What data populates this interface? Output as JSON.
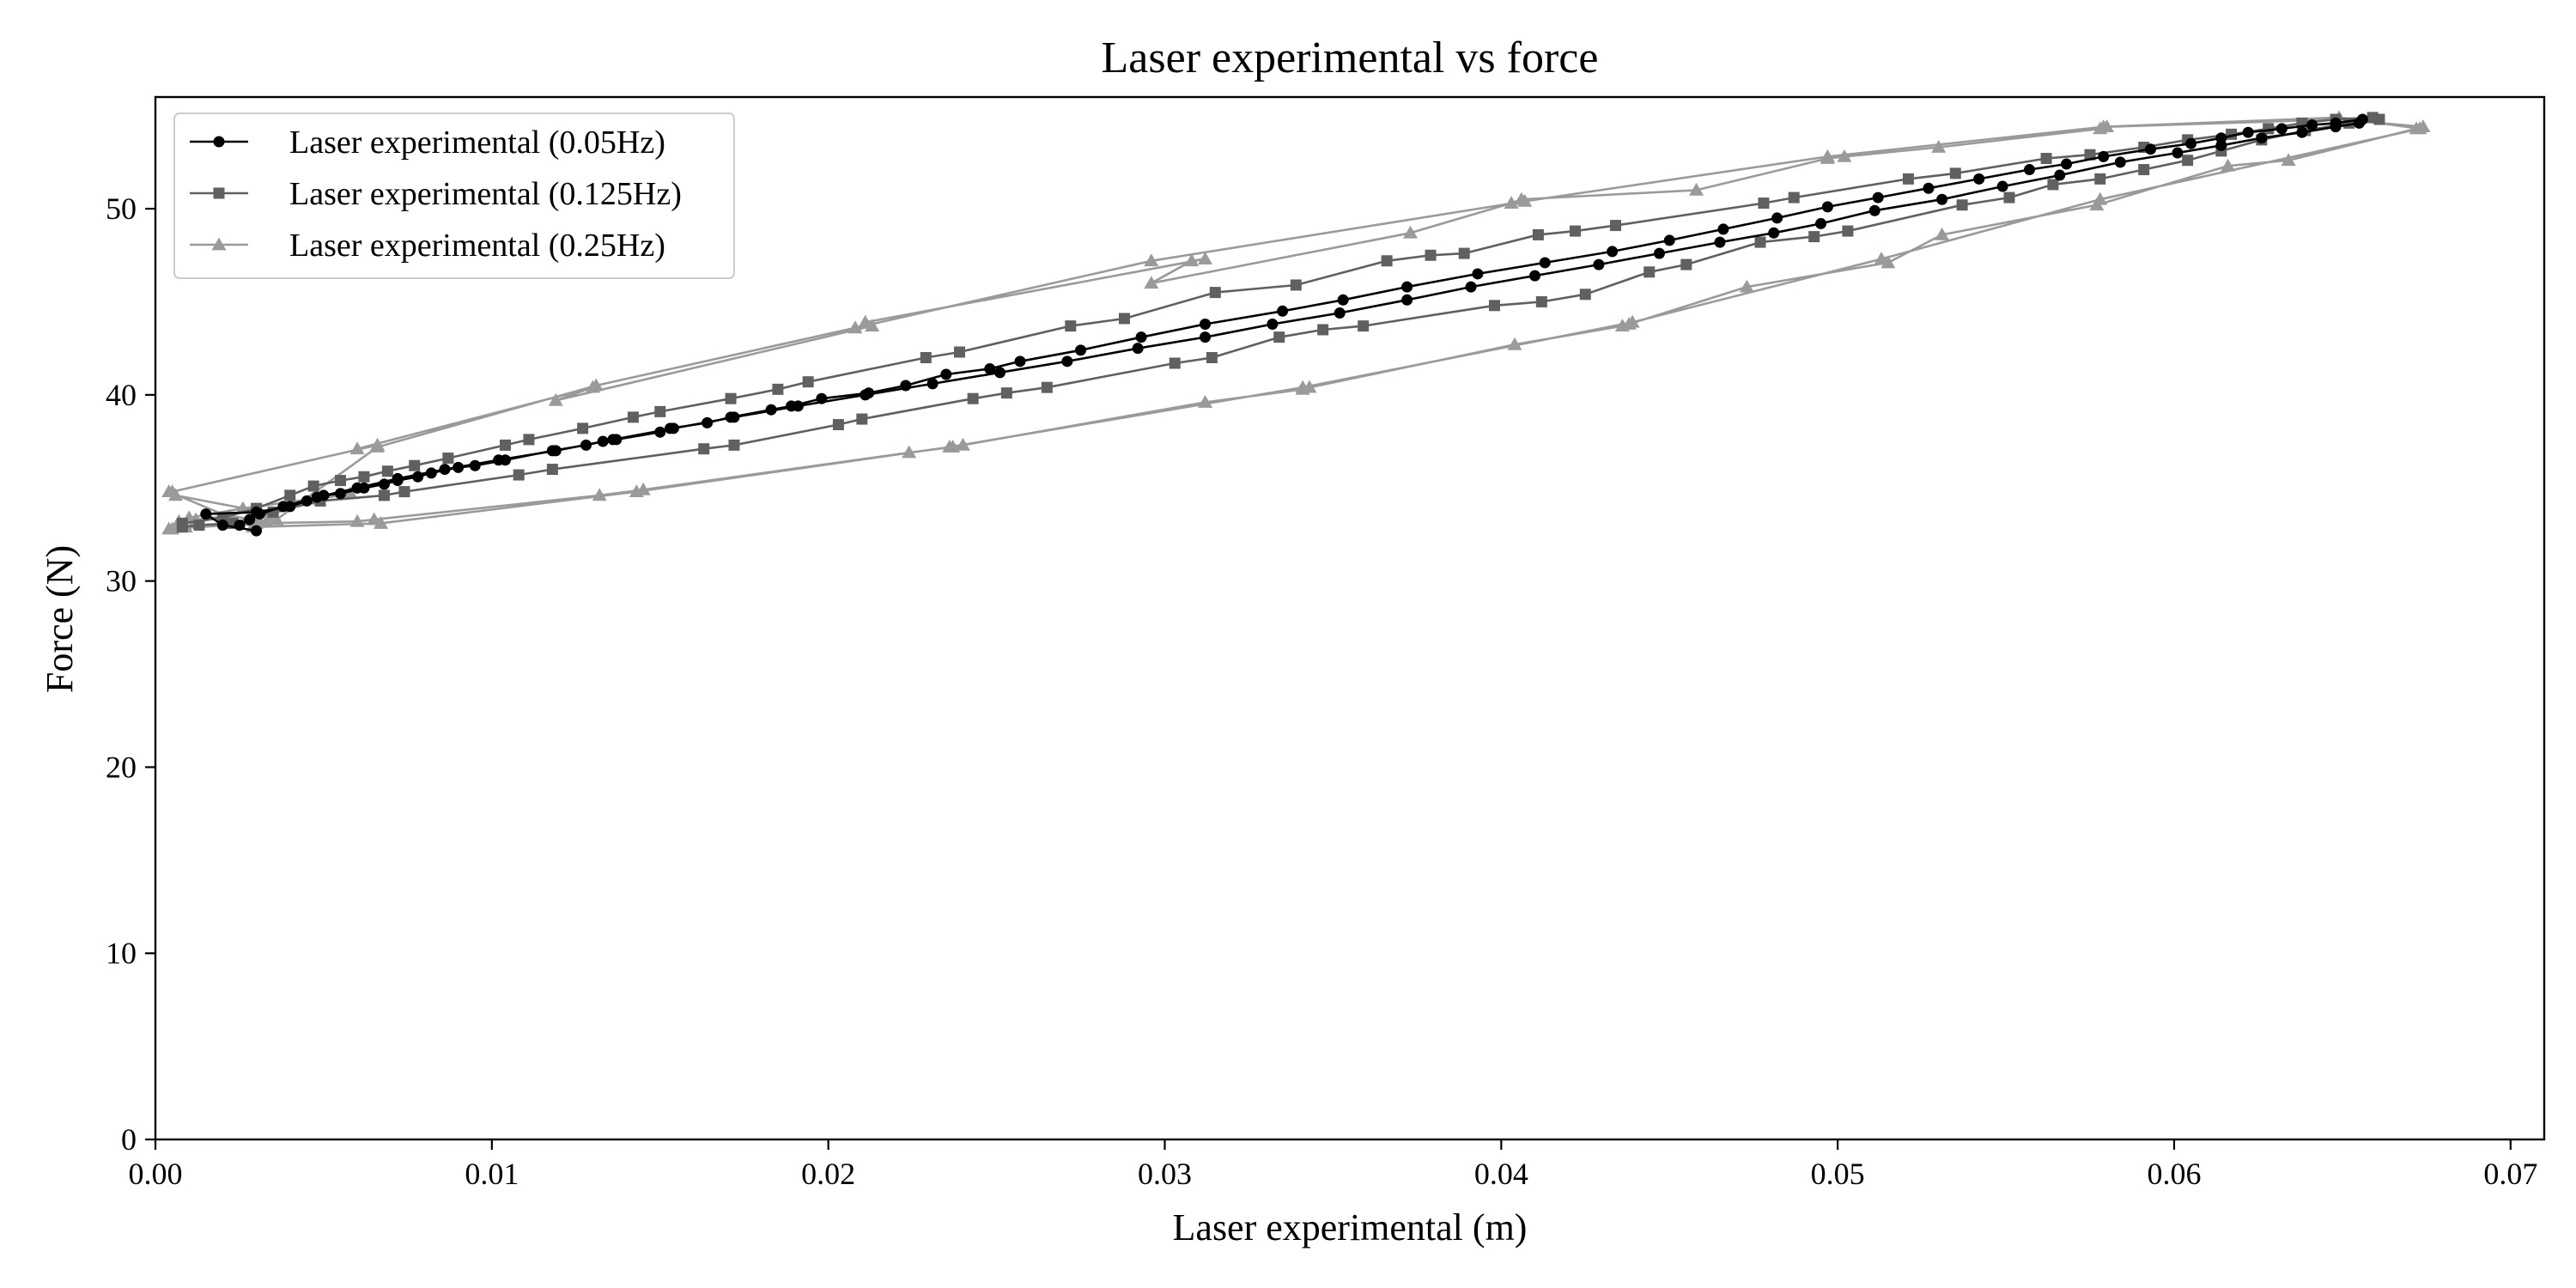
{
  "chart_data": {
    "type": "line",
    "title": "Laser experimental vs force",
    "xlabel": "Laser experimental (m)",
    "ylabel": "Force (N)",
    "xlim": [
      0.0,
      0.071
    ],
    "ylim": [
      0,
      56
    ],
    "xticks": [
      "0.00",
      "0.01",
      "0.02",
      "0.03",
      "0.04",
      "0.05",
      "0.06",
      "0.07"
    ],
    "xtick_values": [
      0.0,
      0.01,
      0.02,
      0.03,
      0.04,
      0.05,
      0.06,
      0.07
    ],
    "yticks": [
      "0",
      "10",
      "20",
      "30",
      "40",
      "50"
    ],
    "ytick_values": [
      0,
      10,
      20,
      30,
      40,
      50
    ],
    "grid": false,
    "legend_position": "top-left",
    "series": [
      {
        "name": "Laser experimental (0.05Hz)",
        "color": "#000000",
        "marker": "circle",
        "x": [
          0.003,
          0.002,
          0.0015,
          0.003,
          0.004,
          0.0045,
          0.005,
          0.0055,
          0.0062,
          0.0068,
          0.0072,
          0.0078,
          0.0082,
          0.009,
          0.0095,
          0.0104,
          0.0118,
          0.0128,
          0.0133,
          0.0137,
          0.015,
          0.0153,
          0.0164,
          0.0171,
          0.0183,
          0.0189,
          0.0198,
          0.0212,
          0.0223,
          0.0235,
          0.0248,
          0.0257,
          0.0275,
          0.0293,
          0.0312,
          0.0335,
          0.0353,
          0.0372,
          0.0393,
          0.0413,
          0.0433,
          0.045,
          0.0466,
          0.0482,
          0.0497,
          0.0512,
          0.0527,
          0.0542,
          0.0557,
          0.0568,
          0.0579,
          0.0593,
          0.0605,
          0.0614,
          0.0622,
          0.0632,
          0.0641,
          0.0648,
          0.0656,
          0.0655,
          0.0648,
          0.0638,
          0.0626,
          0.0614,
          0.0601,
          0.0584,
          0.0566,
          0.0549,
          0.0531,
          0.0511,
          0.0495,
          0.0481,
          0.0465,
          0.0447,
          0.0429,
          0.041,
          0.0391,
          0.0372,
          0.0352,
          0.0332,
          0.0312,
          0.0292,
          0.0271,
          0.0251,
          0.0231,
          0.0211,
          0.0191,
          0.0172,
          0.0154,
          0.0136,
          0.0119,
          0.0102,
          0.0086,
          0.0072,
          0.006,
          0.0048,
          0.0038,
          0.0031,
          0.0028,
          0.0025
        ],
        "y": [
          32.7,
          33.0,
          33.6,
          33.7,
          34.0,
          34.3,
          34.6,
          34.7,
          35.0,
          35.2,
          35.4,
          35.6,
          35.8,
          36.1,
          36.2,
          36.5,
          37.0,
          37.3,
          37.5,
          37.6,
          38.0,
          38.2,
          38.5,
          38.8,
          39.2,
          39.4,
          39.8,
          40.1,
          40.5,
          41.1,
          41.4,
          41.8,
          42.4,
          43.1,
          43.8,
          44.5,
          45.1,
          45.8,
          46.5,
          47.1,
          47.7,
          48.3,
          48.9,
          49.5,
          50.1,
          50.6,
          51.1,
          51.6,
          52.1,
          52.4,
          52.8,
          53.2,
          53.5,
          53.8,
          54.1,
          54.3,
          54.5,
          54.6,
          54.8,
          54.6,
          54.4,
          54.1,
          53.8,
          53.4,
          53.0,
          52.5,
          51.8,
          51.2,
          50.5,
          49.9,
          49.2,
          48.7,
          48.2,
          47.6,
          47.0,
          46.4,
          45.8,
          45.1,
          44.4,
          43.8,
          43.1,
          42.5,
          41.8,
          41.2,
          40.6,
          40.0,
          39.4,
          38.8,
          38.2,
          37.6,
          37.0,
          36.5,
          36.0,
          35.5,
          35.0,
          34.5,
          34.0,
          33.6,
          33.3,
          33.0
        ]
      },
      {
        "name": "Laser experimental (0.125Hz)",
        "color": "#606060",
        "marker": "square",
        "x": [
          0.0008,
          0.002,
          0.003,
          0.004,
          0.0047,
          0.0055,
          0.0062,
          0.0069,
          0.0077,
          0.0087,
          0.0104,
          0.0111,
          0.0127,
          0.0142,
          0.015,
          0.0171,
          0.0185,
          0.0194,
          0.0229,
          0.0239,
          0.0272,
          0.0288,
          0.0315,
          0.0339,
          0.0366,
          0.0379,
          0.0389,
          0.0411,
          0.0422,
          0.0434,
          0.0478,
          0.0487,
          0.0521,
          0.0535,
          0.0562,
          0.0575,
          0.0591,
          0.0604,
          0.0617,
          0.0628,
          0.0638,
          0.0648,
          0.0659,
          0.0661,
          0.0652,
          0.0639,
          0.0626,
          0.0614,
          0.0604,
          0.0591,
          0.0578,
          0.0564,
          0.0551,
          0.0537,
          0.0503,
          0.0493,
          0.0477,
          0.0455,
          0.0444,
          0.0425,
          0.0412,
          0.0398,
          0.0359,
          0.0347,
          0.0334,
          0.0314,
          0.0303,
          0.0265,
          0.0253,
          0.0243,
          0.021,
          0.0203,
          0.0172,
          0.0163,
          0.0118,
          0.0108,
          0.0074,
          0.0068,
          0.0049,
          0.0035,
          0.0023,
          0.0013,
          0.0008
        ],
        "y": [
          33.1,
          33.4,
          33.9,
          34.6,
          35.1,
          35.4,
          35.6,
          35.9,
          36.2,
          36.6,
          37.3,
          37.6,
          38.2,
          38.8,
          39.1,
          39.8,
          40.3,
          40.7,
          42.0,
          42.3,
          43.7,
          44.1,
          45.5,
          45.9,
          47.2,
          47.5,
          47.6,
          48.6,
          48.8,
          49.1,
          50.3,
          50.6,
          51.6,
          51.9,
          52.7,
          52.9,
          53.3,
          53.7,
          54.0,
          54.3,
          54.6,
          54.8,
          54.9,
          54.8,
          54.6,
          54.2,
          53.7,
          53.1,
          52.6,
          52.1,
          51.6,
          51.3,
          50.6,
          50.2,
          48.8,
          48.5,
          48.2,
          47.0,
          46.6,
          45.4,
          45.0,
          44.8,
          43.7,
          43.5,
          43.1,
          42.0,
          41.7,
          40.4,
          40.1,
          39.8,
          38.7,
          38.4,
          37.3,
          37.1,
          36.0,
          35.7,
          34.8,
          34.6,
          34.3,
          33.7,
          33.1,
          33.0,
          32.9
        ]
      },
      {
        "name": "Laser experimental (0.25Hz)",
        "color": "#9a9a9a",
        "marker": "triangle",
        "x": [
          0.0005,
          0.003,
          0.006,
          0.0065,
          0.0132,
          0.0145,
          0.0224,
          0.0237,
          0.024,
          0.0312,
          0.0341,
          0.0343,
          0.0404,
          0.0436,
          0.0438,
          0.0473,
          0.0515,
          0.0531,
          0.0577,
          0.0616,
          0.0634,
          0.0672,
          0.0674,
          0.0649,
          0.058,
          0.0578,
          0.053,
          0.0502,
          0.0497,
          0.0458,
          0.0406,
          0.0403,
          0.0373,
          0.0296,
          0.0308,
          0.0312,
          0.0211,
          0.0213,
          0.0119,
          0.013,
          0.006,
          0.0066,
          0.0005,
          0.0006,
          0.0035,
          0.0048,
          0.0058,
          0.0026,
          0.001,
          0.0007,
          0.0012,
          0.0022,
          0.0033,
          0.0009,
          0.0004,
          0.0036,
          0.0066,
          0.0131,
          0.0208,
          0.0296,
          0.0407,
          0.0497,
          0.0579,
          0.0649,
          0.0673,
          0.0578,
          0.0513,
          0.0439,
          0.0341,
          0.0236,
          0.0143,
          0.0067,
          0.0029,
          0.0004
        ],
        "y": [
          32.8,
          33.1,
          33.2,
          33.3,
          34.6,
          34.9,
          36.9,
          37.2,
          37.3,
          39.6,
          40.3,
          40.4,
          42.7,
          43.7,
          43.8,
          45.8,
          47.1,
          48.6,
          50.2,
          52.3,
          52.6,
          54.3,
          54.4,
          54.8,
          54.4,
          54.3,
          53.3,
          52.8,
          52.7,
          51.0,
          50.5,
          50.3,
          48.7,
          46.0,
          47.2,
          47.3,
          43.9,
          43.7,
          39.7,
          40.4,
          37.1,
          37.3,
          34.8,
          34.6,
          33.6,
          34.4,
          34.7,
          33.9,
          33.4,
          33.2,
          33.3,
          33.5,
          33.2,
          32.9,
          32.8,
          33.3,
          37.2,
          40.5,
          43.6,
          47.2,
          50.4,
          52.8,
          54.4,
          54.9,
          54.3,
          50.5,
          47.3,
          43.9,
          40.4,
          37.2,
          34.8,
          33.1,
          32.9,
          34.8
        ]
      }
    ]
  }
}
